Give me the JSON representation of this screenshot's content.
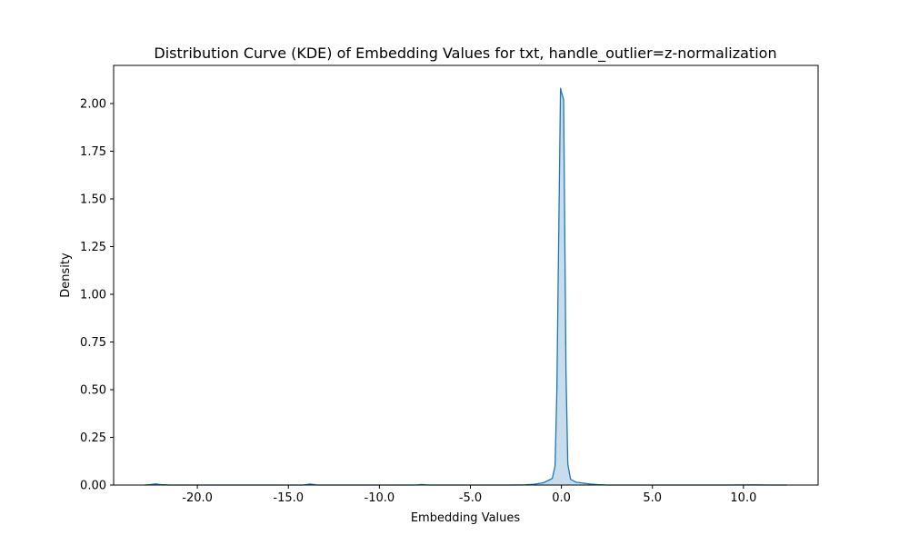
{
  "chart_data": {
    "type": "area",
    "title": "Distribution Curve (KDE) of Embedding Values for txt, handle_outlier=z-normalization",
    "xlabel": "Embedding Values",
    "ylabel": "Density",
    "xlim": [
      -24.6,
      14.1
    ],
    "ylim": [
      0,
      2.2
    ],
    "xticks": [
      -20.0,
      -15.0,
      -10.0,
      -5.0,
      0.0,
      5.0,
      10.0
    ],
    "xtick_labels": [
      "-20.0",
      "-15.0",
      "-10.0",
      "-5.0",
      "0.0",
      "5.0",
      "10.0"
    ],
    "yticks": [
      0.0,
      0.25,
      0.5,
      0.75,
      1.0,
      1.25,
      1.5,
      1.75,
      2.0
    ],
    "ytick_labels": [
      "0.00",
      "0.25",
      "0.50",
      "0.75",
      "1.00",
      "1.25",
      "1.50",
      "1.75",
      "2.00"
    ],
    "grid": false,
    "color": "#1f77b4",
    "fill_color": "#1f77b4",
    "fill_opacity": 0.25,
    "series": [
      {
        "x": [
          -22.9,
          -22.6,
          -22.3,
          -22.0,
          -21.5,
          -20,
          -18,
          -16,
          -14.2,
          -13.8,
          -13.4,
          -12,
          -10,
          -8,
          -7.7,
          -7.3,
          -6.5,
          -5,
          -3,
          -2,
          -1.5,
          -1.0,
          -0.7,
          -0.5,
          -0.35,
          -0.25,
          -0.15,
          -0.05,
          0.0,
          0.12,
          0.25,
          0.35,
          0.5,
          0.8,
          1.2,
          1.6,
          2.0,
          2.5,
          3.5,
          5,
          7,
          9,
          10.5,
          11.5,
          12.4
        ],
        "y": [
          0.0,
          0.002,
          0.006,
          0.002,
          0.0,
          0.0,
          0.0,
          0.0,
          0.0,
          0.005,
          0.0,
          0.0,
          0.0,
          0.0,
          0.003,
          0.0,
          0.0,
          0.0,
          0.0,
          0.001,
          0.004,
          0.012,
          0.025,
          0.035,
          0.1,
          0.5,
          1.3,
          2.08,
          2.06,
          2.02,
          0.6,
          0.11,
          0.03,
          0.015,
          0.01,
          0.005,
          0.002,
          0.0,
          0.0,
          0.0,
          0.0,
          0.0,
          0.001,
          0.0,
          0.0
        ]
      }
    ]
  }
}
